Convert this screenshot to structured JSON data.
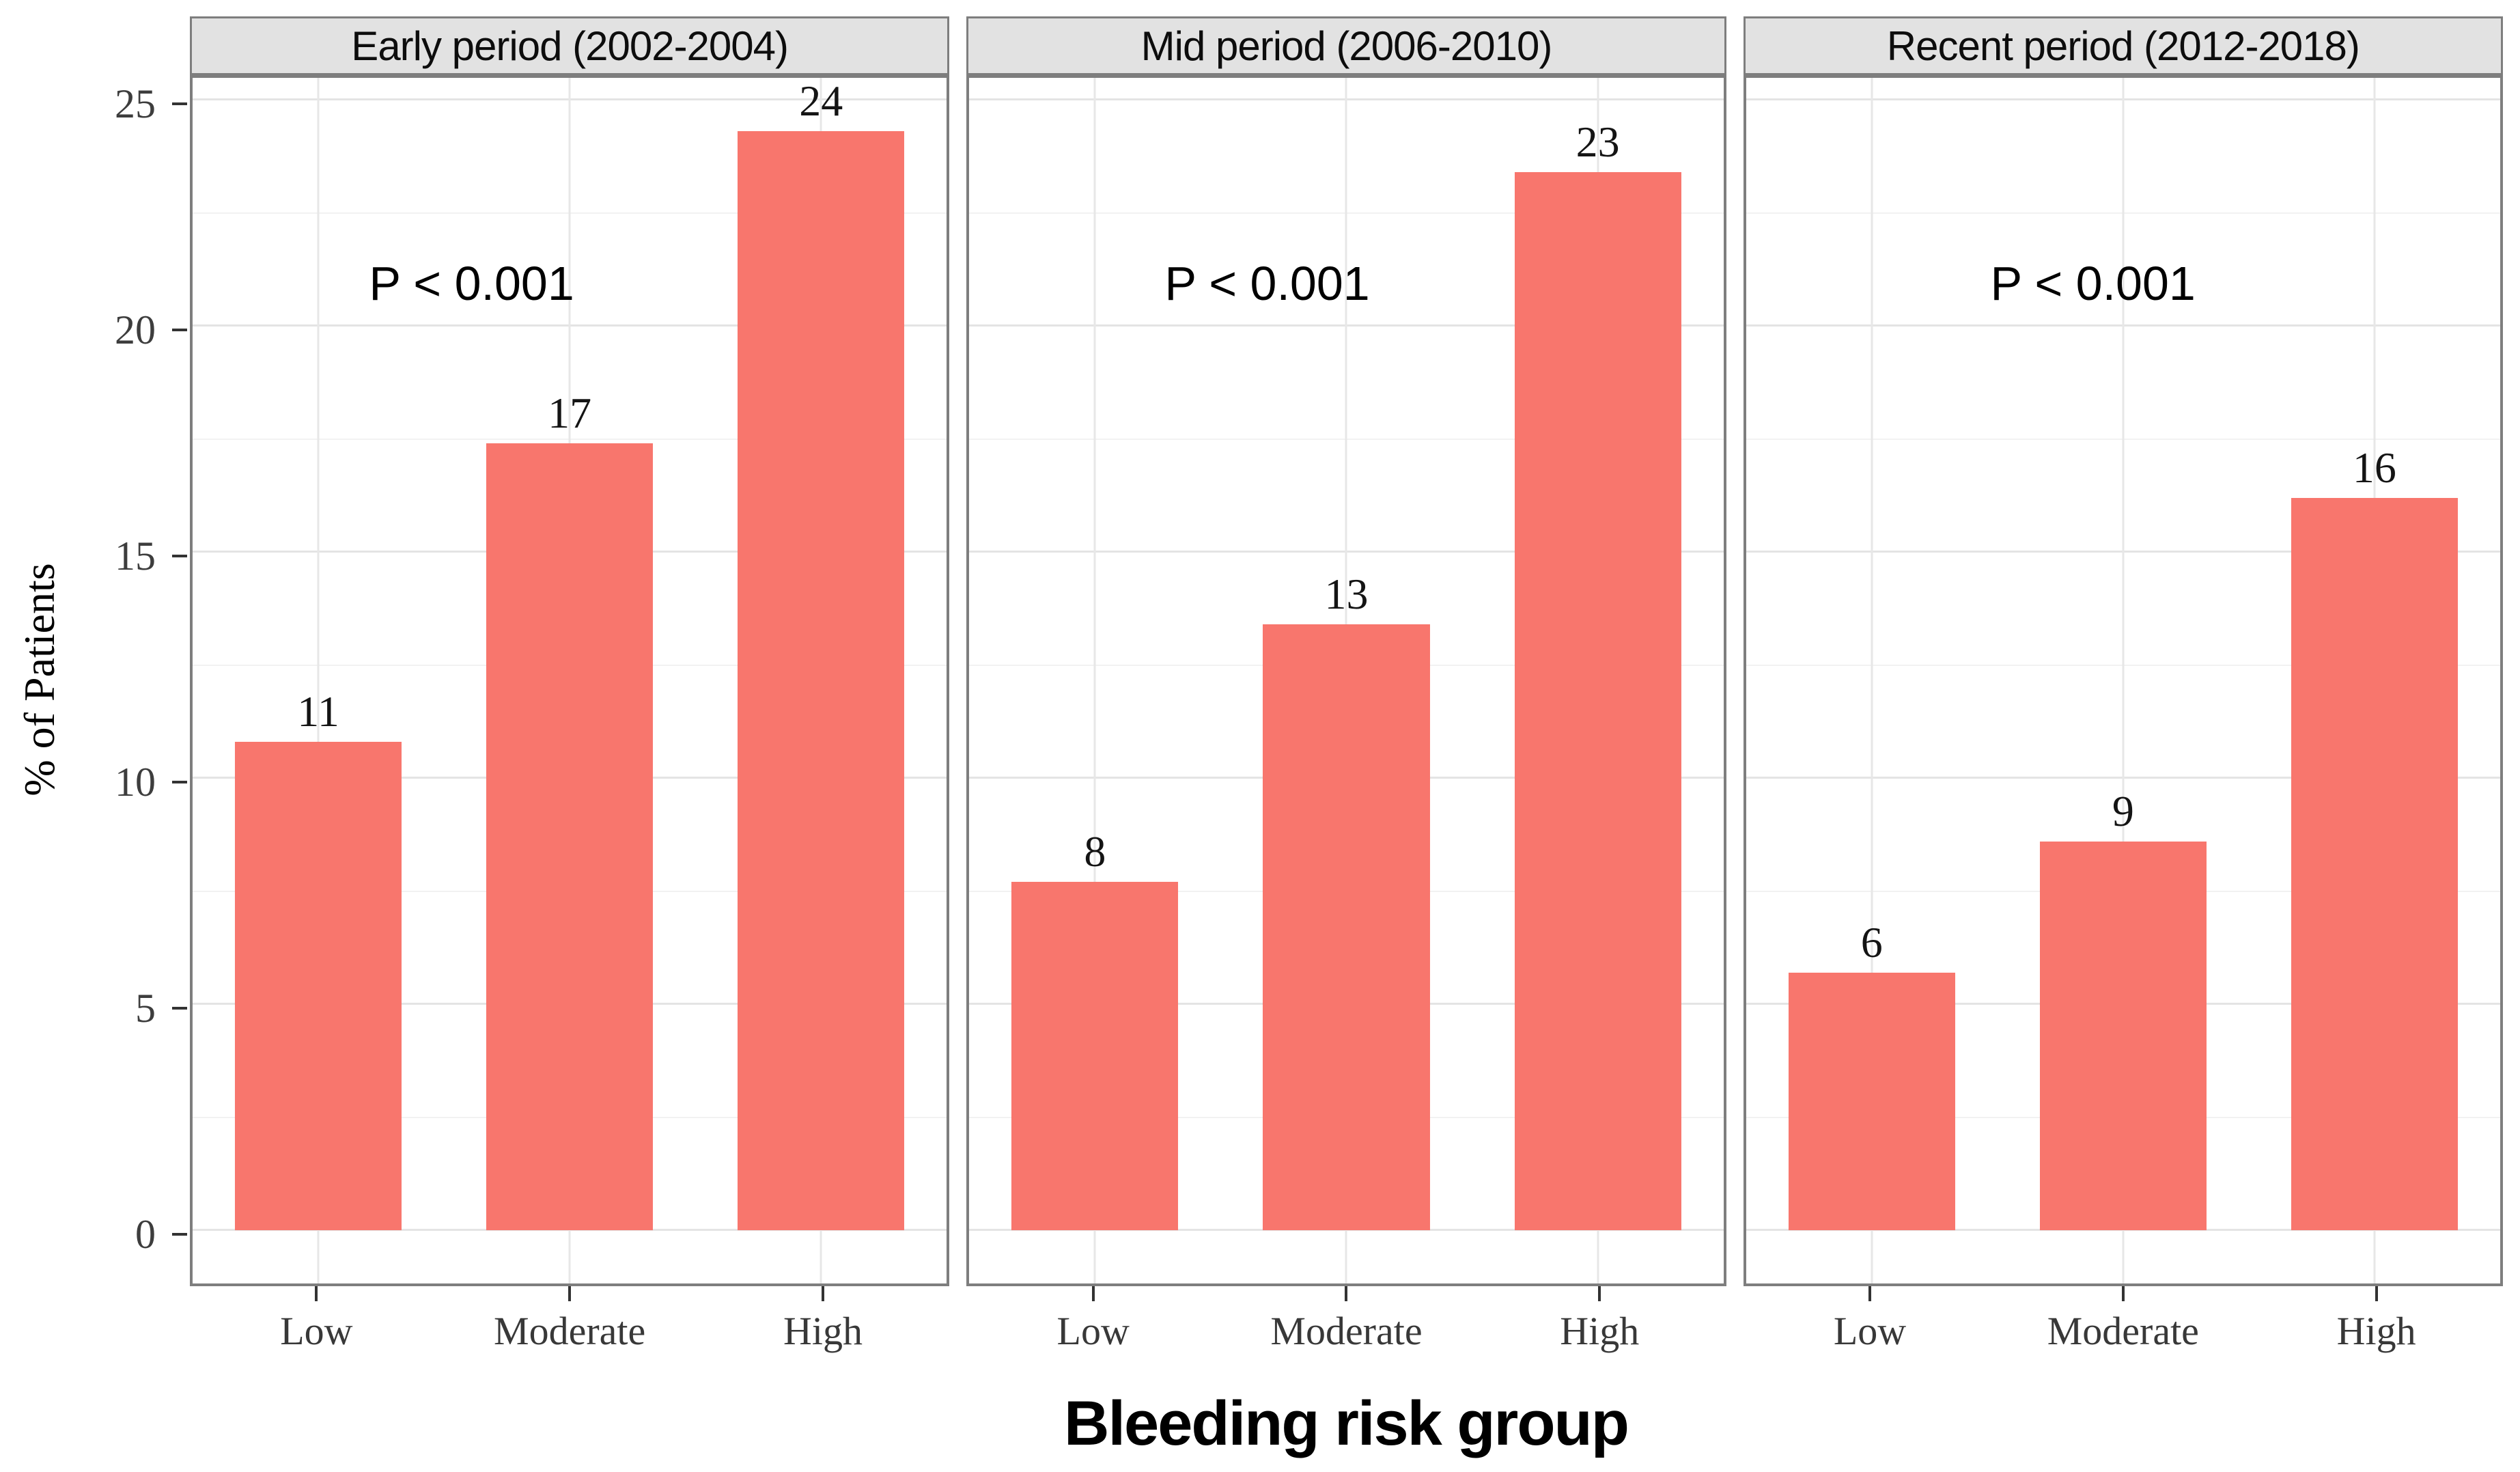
{
  "chart_data": {
    "type": "bar",
    "title": "",
    "xlabel": "Bleeding risk group",
    "ylabel": "% of Patients",
    "categories": [
      "Low",
      "Moderate",
      "High"
    ],
    "ylim": [
      0,
      25
    ],
    "yticks": [
      0,
      5,
      10,
      15,
      20,
      25
    ],
    "grid": {
      "major_step": 5,
      "minor_step": 2.5,
      "vertical_major": "category-centers"
    },
    "legend_position": "none",
    "facets": [
      {
        "title": "Early period (2002-2004)",
        "annotation": "P < 0.001",
        "annotation_x_frac": 0.37,
        "values": [
          10.8,
          17.4,
          24.3
        ],
        "bar_labels": [
          "11",
          "17",
          "24"
        ]
      },
      {
        "title": "Mid period (2006-2010)",
        "annotation": "P < 0.001",
        "annotation_x_frac": 0.395,
        "values": [
          7.7,
          13.4,
          23.4
        ],
        "bar_labels": [
          "8",
          "13",
          "23"
        ]
      },
      {
        "title": "Recent period (2012-2018)",
        "annotation": "P < 0.001",
        "annotation_x_frac": 0.46,
        "values": [
          5.7,
          8.6,
          16.2
        ],
        "bar_labels": [
          "6",
          "9",
          "16"
        ]
      }
    ],
    "annotation_y_value": 21.05,
    "colors": {
      "bar": "#F8766D",
      "strip_bg": "#E2E2E2",
      "panel_border": "#7E7E7E",
      "grid_major": "#E4E4E4",
      "grid_minor": "#F2F2F2",
      "axis_tick": "#333333",
      "tick_label": "#3D3D3D",
      "text": "#000000"
    }
  }
}
